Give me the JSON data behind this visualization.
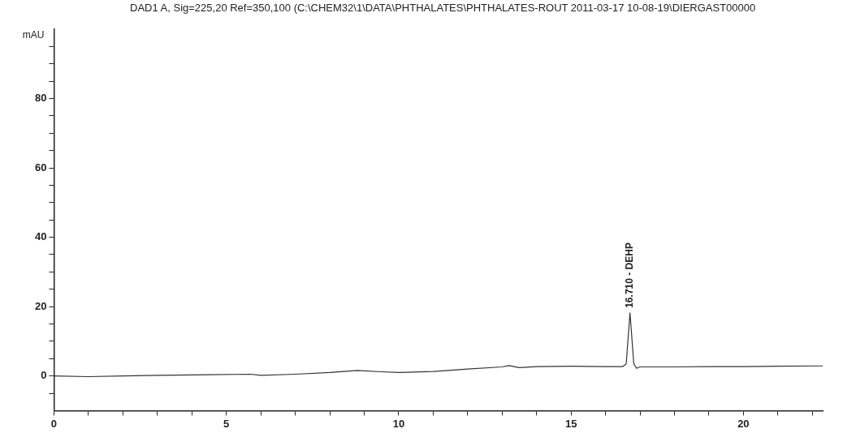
{
  "chart_data": {
    "type": "line",
    "title": "DAD1 A, Sig=225,20 Ref=350,100 (C:\\CHEM32\\1\\DATA\\PHTHALATES\\PHTHALATES-ROUT 2011-03-17 10-08-19\\DIERGAST00000",
    "ylabel": "mAU",
    "x": [
      0,
      1,
      2,
      3,
      4,
      5.7,
      6,
      7,
      8,
      8.8,
      9.5,
      10,
      11,
      12,
      13,
      13.2,
      13.5,
      14,
      15,
      16,
      16.5,
      16.6,
      16.71,
      16.82,
      16.9,
      17,
      18,
      19,
      20,
      21,
      22.3
    ],
    "series": [
      {
        "color": "#333333",
        "values": [
          0,
          -0.2,
          0,
          0.2,
          0.3,
          0.5,
          0.2,
          0.5,
          1.0,
          1.6,
          1.2,
          1.0,
          1.3,
          2.0,
          2.6,
          3.0,
          2.4,
          2.7,
          2.8,
          2.7,
          2.7,
          3.5,
          18.2,
          3.5,
          2.2,
          2.6,
          2.6,
          2.7,
          2.7,
          2.8,
          2.9
        ]
      }
    ],
    "xlim": [
      0,
      22.3
    ],
    "xticks": [
      0,
      {
        "value": 1,
        "label": null
      },
      {
        "value": 2,
        "label": null
      },
      {
        "value": 3,
        "label": null
      },
      {
        "value": 4,
        "label": null
      },
      5,
      {
        "value": 6,
        "label": null
      },
      {
        "value": 7,
        "label": null
      },
      {
        "value": 8,
        "label": null
      },
      {
        "value": 9,
        "label": null
      },
      10,
      {
        "value": 11,
        "label": null
      },
      {
        "value": 12,
        "label": null
      },
      {
        "value": 13,
        "label": null
      },
      {
        "value": 14,
        "label": null
      },
      15,
      {
        "value": 16,
        "label": null
      },
      {
        "value": 17,
        "label": null
      },
      {
        "value": 18,
        "label": null
      },
      {
        "value": 19,
        "label": null
      },
      20,
      {
        "value": 21,
        "label": null
      },
      {
        "value": 22,
        "label": null
      }
    ],
    "ylim": [
      -10,
      100
    ],
    "yticks": [
      {
        "value": -5,
        "label": null
      },
      0,
      {
        "value": 5,
        "label": null
      },
      {
        "value": 10,
        "label": null
      },
      {
        "value": 15,
        "label": null
      },
      20,
      {
        "value": 25,
        "label": null
      },
      {
        "value": 30,
        "label": null
      },
      {
        "value": 35,
        "label": null
      },
      40,
      {
        "value": 45,
        "label": null
      },
      {
        "value": 50,
        "label": null
      },
      {
        "value": 55,
        "label": null
      },
      60,
      {
        "value": 65,
        "label": null
      },
      {
        "value": 70,
        "label": null
      },
      {
        "value": 75,
        "label": null
      },
      80,
      {
        "value": 85,
        "label": null
      },
      {
        "value": 90,
        "label": null
      },
      {
        "value": 95,
        "label": null
      }
    ],
    "annotations": [
      {
        "text": "16.710 - DEHP",
        "x": 16.71,
        "y": 18.2
      }
    ],
    "grid": false,
    "legend": false,
    "marker": "none",
    "line_style": "solid"
  }
}
